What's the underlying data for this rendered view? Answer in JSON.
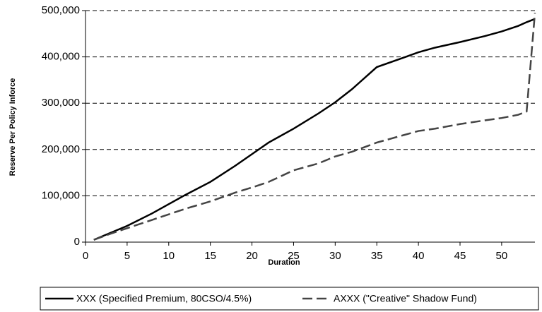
{
  "chart_data": {
    "type": "line",
    "x_label": "Duration",
    "y_label": "Reserve Per Policy Inforce",
    "x": [
      1,
      3,
      5,
      8,
      10,
      12,
      15,
      18,
      20,
      22,
      25,
      28,
      30,
      32,
      35,
      38,
      40,
      42,
      45,
      48,
      50,
      52,
      53,
      54
    ],
    "series": [
      {
        "name": "XXX (Specified Premium, 80CSO/4.5%)",
        "color": "#000000",
        "dash": "solid",
        "values": [
          5000,
          20000,
          35000,
          62000,
          82000,
          102000,
          130000,
          165000,
          190000,
          215000,
          245000,
          278000,
          302000,
          330000,
          378000,
          397000,
          410000,
          420000,
          432000,
          445000,
          455000,
          467000,
          475000,
          482000
        ]
      },
      {
        "name": "AXXX (\"Creative\" Shadow Fund)",
        "color": "#444444",
        "dash": "dashed",
        "values": [
          5000,
          18000,
          30000,
          48000,
          60000,
          72000,
          88000,
          107000,
          118000,
          130000,
          155000,
          170000,
          185000,
          195000,
          215000,
          230000,
          240000,
          245000,
          255000,
          263000,
          268000,
          275000,
          282000,
          495000
        ]
      }
    ],
    "xlim": [
      0,
      54
    ],
    "xticks": [
      0,
      5,
      10,
      15,
      20,
      25,
      30,
      35,
      40,
      45,
      50
    ],
    "ylim": [
      0,
      500000
    ],
    "yticks": [
      0,
      {
        "value": 100000,
        "label": "100,000"
      },
      {
        "value": 200000,
        "label": "200,000"
      },
      {
        "value": 300000,
        "label": "300,000"
      },
      {
        "value": 400000,
        "label": "400,000"
      },
      {
        "value": 500000,
        "label": "500,000"
      }
    ],
    "grid": true
  }
}
